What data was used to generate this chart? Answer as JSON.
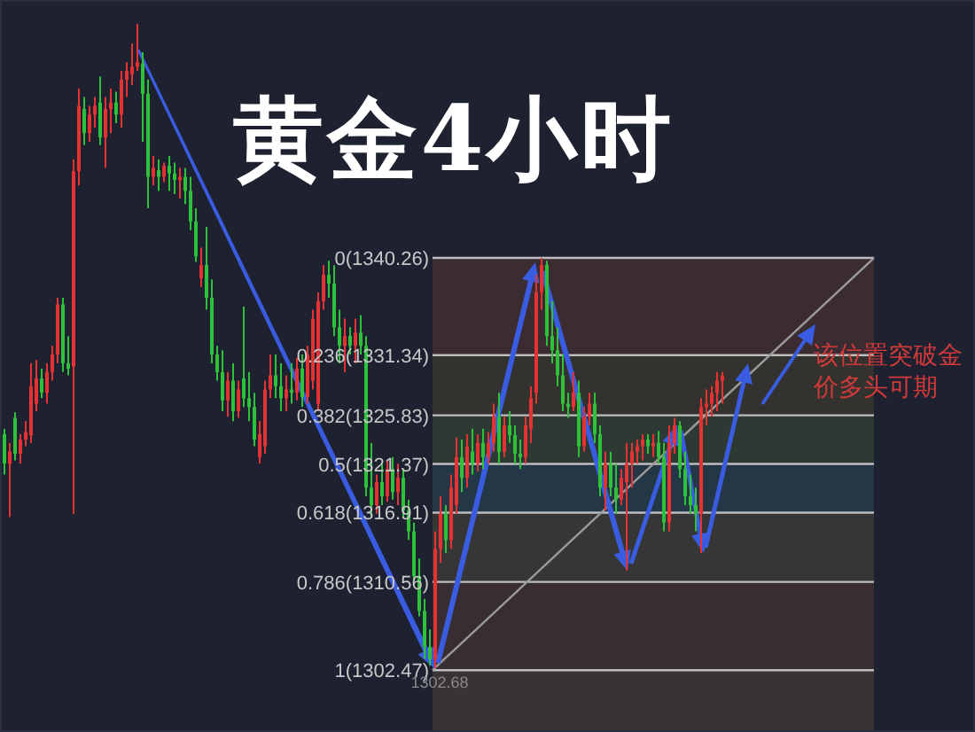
{
  "chart_data": {
    "type": "candlestick",
    "title": "黄金4小时",
    "categories": [
      null,
      null,
      null,
      null,
      null,
      null,
      null,
      null,
      null,
      null,
      null,
      null,
      null,
      null,
      null,
      null,
      null,
      null,
      null,
      null,
      null,
      null,
      null,
      null,
      null,
      null,
      null,
      null,
      null,
      null,
      null,
      null,
      null,
      null,
      null,
      null,
      null,
      null,
      null,
      null,
      null,
      null,
      null,
      null,
      null,
      null,
      null,
      null,
      null,
      null,
      null,
      null,
      null,
      null,
      null,
      null,
      null,
      null,
      null,
      null,
      null,
      null,
      null,
      null,
      null,
      null,
      null,
      null,
      null,
      null,
      null,
      null,
      null,
      null,
      null,
      null,
      null,
      null,
      null,
      null,
      null,
      null,
      null,
      null,
      null,
      null,
      null,
      null,
      null,
      null,
      null,
      null,
      null,
      null,
      null,
      null,
      null,
      null,
      null,
      null,
      null,
      null,
      null,
      null,
      null,
      null,
      null,
      null,
      null,
      null,
      null,
      null,
      null,
      null,
      null,
      null,
      null,
      null,
      null,
      null,
      null,
      null,
      null,
      null,
      null,
      null,
      null,
      null,
      null,
      null,
      null,
      null,
      null,
      null,
      null,
      null
    ],
    "ohlc": [
      [
        1324.1,
        1324.6,
        1320.4,
        1321.4
      ],
      [
        1321.4,
        1323.3,
        1316.5,
        1322.5
      ],
      [
        1325.6,
        1326.1,
        1321.7,
        1322.3
      ],
      [
        1322.3,
        1324.1,
        1321.4,
        1323.6
      ],
      [
        1323.6,
        1325.3,
        1323.0,
        1324.3
      ],
      [
        1324.0,
        1330.6,
        1323.3,
        1328.5
      ],
      [
        1326.9,
        1330.9,
        1326.2,
        1329.2
      ],
      [
        1329.2,
        1330.1,
        1327.4,
        1327.9
      ],
      [
        1327.9,
        1330.6,
        1326.9,
        1329.8
      ],
      [
        1329.8,
        1332.2,
        1329.0,
        1331.4
      ],
      [
        1331.4,
        1336.6,
        1330.6,
        1336.0
      ],
      [
        1336.0,
        1336.6,
        1329.8,
        1330.6
      ],
      [
        1330.6,
        1333.1,
        1329.5,
        1330.1
      ],
      [
        1330.3,
        1349.3,
        1316.8,
        1348.2
      ],
      [
        1348.2,
        1355.8,
        1346.9,
        1354.2
      ],
      [
        1353.9,
        1355.0,
        1350.6,
        1351.7
      ],
      [
        1351.7,
        1354.2,
        1350.9,
        1353.4
      ],
      [
        1353.4,
        1355.0,
        1352.2,
        1354.2
      ],
      [
        1354.5,
        1356.9,
        1350.6,
        1351.3
      ],
      [
        1351.3,
        1355.0,
        1348.5,
        1353.9
      ],
      [
        1353.9,
        1355.8,
        1351.7,
        1354.5
      ],
      [
        1354.5,
        1355.5,
        1352.6,
        1353.4
      ],
      [
        1353.4,
        1357.4,
        1352.2,
        1356.6
      ],
      [
        1356.6,
        1358.2,
        1355.0,
        1357.4
      ],
      [
        1357.1,
        1359.9,
        1356.1,
        1357.8
      ],
      [
        1357.8,
        1361.7,
        1357.4,
        1358.2
      ],
      [
        1358.1,
        1359.1,
        1350.9,
        1355.3
      ],
      [
        1355.3,
        1356.6,
        1344.8,
        1347.7
      ],
      [
        1347.7,
        1349.6,
        1346.9,
        1348.5
      ],
      [
        1348.3,
        1349.3,
        1346.4,
        1347.7
      ],
      [
        1347.7,
        1349.0,
        1347.2,
        1348.7
      ],
      [
        1348.7,
        1349.6,
        1346.4,
        1348.0
      ],
      [
        1348.0,
        1349.0,
        1346.1,
        1347.4
      ],
      [
        1347.4,
        1348.5,
        1345.7,
        1347.7
      ],
      [
        1347.7,
        1348.5,
        1345.2,
        1346.4
      ],
      [
        1346.4,
        1347.7,
        1342.8,
        1343.6
      ],
      [
        1343.6,
        1344.8,
        1339.9,
        1340.4
      ],
      [
        1338.4,
        1341.2,
        1337.6,
        1339.6
      ],
      [
        1339.6,
        1343.1,
        1335.5,
        1336.6
      ],
      [
        1336.6,
        1338.3,
        1330.6,
        1331.4
      ],
      [
        1331.4,
        1332.2,
        1329.0,
        1329.8
      ],
      [
        1329.8,
        1331.8,
        1326.2,
        1327.2
      ],
      [
        1327.2,
        1329.8,
        1325.7,
        1329.0
      ],
      [
        1329.0,
        1330.6,
        1325.3,
        1326.2
      ],
      [
        1326.2,
        1329.0,
        1325.6,
        1328.2
      ],
      [
        1329.2,
        1335.8,
        1326.6,
        1327.4
      ],
      [
        1327.4,
        1329.8,
        1325.3,
        1326.6
      ],
      [
        1326.6,
        1327.9,
        1323.0,
        1323.6
      ],
      [
        1322.0,
        1325.3,
        1321.4,
        1324.1
      ],
      [
        1323.0,
        1329.0,
        1322.3,
        1328.2
      ],
      [
        1328.2,
        1331.4,
        1327.4,
        1329.5
      ],
      [
        1329.5,
        1331.4,
        1327.4,
        1328.5
      ],
      [
        1328.5,
        1330.6,
        1326.2,
        1327.4
      ],
      [
        1327.4,
        1329.5,
        1326.2,
        1328.2
      ],
      [
        1328.2,
        1330.6,
        1326.9,
        1327.9
      ],
      [
        1327.9,
        1331.1,
        1327.2,
        1330.1
      ],
      [
        1330.1,
        1331.4,
        1326.6,
        1327.5
      ],
      [
        1327.5,
        1332.2,
        1326.9,
        1331.4
      ],
      [
        1329.0,
        1335.5,
        1328.2,
        1334.7
      ],
      [
        1326.9,
        1337.1,
        1326.2,
        1336.3
      ],
      [
        1336.3,
        1339.6,
        1335.5,
        1338.7
      ],
      [
        1338.7,
        1340.0,
        1336.6,
        1337.9
      ],
      [
        1337.9,
        1339.6,
        1333.1,
        1333.9
      ],
      [
        1333.9,
        1335.5,
        1330.6,
        1332.2
      ],
      [
        1332.2,
        1334.7,
        1329.8,
        1333.1
      ],
      [
        1333.1,
        1333.9,
        1331.4,
        1332.2
      ],
      [
        1332.2,
        1334.7,
        1330.6,
        1333.4
      ],
      [
        1333.4,
        1335.0,
        1331.4,
        1332.2
      ],
      [
        1332.2,
        1333.1,
        1318.4,
        1319.2
      ],
      [
        1319.2,
        1323.3,
        1316.5,
        1317.6
      ],
      [
        1317.6,
        1320.4,
        1316.8,
        1319.7
      ],
      [
        1319.7,
        1321.4,
        1317.6,
        1318.4
      ],
      [
        1318.4,
        1321.7,
        1317.9,
        1320.9
      ],
      [
        1320.9,
        1322.0,
        1318.1,
        1318.8
      ],
      [
        1318.8,
        1321.4,
        1317.6,
        1320.1
      ],
      [
        1320.1,
        1320.9,
        1316.5,
        1317.1
      ],
      [
        1317.1,
        1318.1,
        1314.4,
        1315.2
      ],
      [
        1315.2,
        1316.0,
        1310.6,
        1311.1
      ],
      [
        1311.1,
        1312.7,
        1307.4,
        1307.9
      ],
      [
        1307.9,
        1309.0,
        1303.5,
        1304.6
      ],
      [
        1304.6,
        1306.2,
        1302.9,
        1303.5
      ],
      [
        1303.5,
        1315.2,
        1302.68,
        1313.6
      ],
      [
        1313.6,
        1318.4,
        1312.3,
        1316.8
      ],
      [
        1316.8,
        1317.6,
        1313.2,
        1314.4
      ],
      [
        1314.4,
        1320.4,
        1313.6,
        1319.2
      ],
      [
        1317.6,
        1323.8,
        1316.8,
        1322.0
      ],
      [
        1322.0,
        1323.6,
        1318.8,
        1320.1
      ],
      [
        1320.1,
        1324.1,
        1319.2,
        1323.0
      ],
      [
        1322.5,
        1324.6,
        1320.4,
        1321.4
      ],
      [
        1321.4,
        1324.1,
        1320.7,
        1323.3
      ],
      [
        1323.3,
        1324.6,
        1320.9,
        1322.0
      ],
      [
        1322.0,
        1324.3,
        1321.4,
        1323.3
      ],
      [
        1323.3,
        1326.9,
        1322.5,
        1325.7
      ],
      [
        1325.7,
        1327.9,
        1321.4,
        1322.5
      ],
      [
        1322.5,
        1325.7,
        1322.0,
        1324.9
      ],
      [
        1324.9,
        1326.2,
        1323.3,
        1324.0
      ],
      [
        1324.0,
        1324.9,
        1321.4,
        1322.3
      ],
      [
        1322.3,
        1323.6,
        1320.9,
        1322.0
      ],
      [
        1322.0,
        1325.7,
        1321.4,
        1324.9
      ],
      [
        1324.6,
        1328.5,
        1323.3,
        1327.4
      ],
      [
        1327.9,
        1338.7,
        1326.9,
        1337.1
      ],
      [
        1337.1,
        1340.26,
        1335.5,
        1339.6
      ],
      [
        1339.6,
        1340.0,
        1332.2,
        1333.1
      ],
      [
        1333.1,
        1336.3,
        1330.6,
        1331.8
      ],
      [
        1331.8,
        1333.9,
        1328.5,
        1329.5
      ],
      [
        1329.5,
        1331.4,
        1326.2,
        1326.9
      ],
      [
        1326.9,
        1327.9,
        1325.6,
        1326.6
      ],
      [
        1326.6,
        1329.8,
        1326.2,
        1327.9
      ],
      [
        1327.9,
        1329.0,
        1322.0,
        1323.0
      ],
      [
        1323.0,
        1326.6,
        1322.5,
        1325.7
      ],
      [
        1325.7,
        1327.9,
        1324.9,
        1326.9
      ],
      [
        1326.9,
        1327.9,
        1323.3,
        1324.1
      ],
      [
        1324.1,
        1324.9,
        1318.4,
        1319.2
      ],
      [
        1319.2,
        1322.5,
        1317.1,
        1321.4
      ],
      [
        1321.4,
        1322.5,
        1318.4,
        1319.2
      ],
      [
        1319.2,
        1321.4,
        1316.8,
        1318.1
      ],
      [
        1318.1,
        1320.9,
        1317.6,
        1320.1
      ],
      [
        1319.7,
        1323.3,
        1311.6,
        1321.4
      ],
      [
        1321.4,
        1323.3,
        1319.2,
        1322.5
      ],
      [
        1322.5,
        1323.6,
        1321.4,
        1323.0
      ],
      [
        1323.0,
        1324.1,
        1321.7,
        1323.6
      ],
      [
        1323.6,
        1324.1,
        1322.3,
        1323.0
      ],
      [
        1323.0,
        1324.1,
        1322.0,
        1323.3
      ],
      [
        1323.3,
        1324.4,
        1321.4,
        1322.0
      ],
      [
        1322.0,
        1323.3,
        1315.2,
        1316.0
      ],
      [
        1316.0,
        1324.9,
        1315.2,
        1323.3
      ],
      [
        1323.3,
        1325.6,
        1322.3,
        1324.9
      ],
      [
        1324.9,
        1325.3,
        1320.1,
        1320.9
      ],
      [
        1320.9,
        1322.5,
        1317.6,
        1318.4
      ],
      [
        1318.4,
        1320.4,
        1316.8,
        1317.6
      ],
      [
        1317.6,
        1319.2,
        1315.2,
        1316.8
      ],
      [
        1316.8,
        1327.4,
        1313.2,
        1326.6
      ],
      [
        1326.6,
        1328.2,
        1324.9,
        1326.9
      ],
      [
        1326.9,
        1328.5,
        1325.7,
        1327.9
      ],
      [
        1327.9,
        1329.8,
        1326.2,
        1329.0
      ],
      [
        1329.0,
        1329.8,
        1326.9,
        1329.5
      ]
    ],
    "colors": [
      "#2ec23a",
      "#e63232",
      "#2ec23a",
      "#e63232",
      "#e63232",
      "#e63232",
      "#e63232",
      "#2ec23a",
      "#e63232",
      "#e63232",
      "#e63232",
      "#2ec23a",
      "#2ec23a",
      "#e63232",
      "#e63232",
      "#2ec23a",
      "#e63232",
      "#e63232",
      "#2ec23a",
      "#e63232",
      "#e63232",
      "#2ec23a",
      "#e63232",
      "#e63232",
      "#e63232",
      "#e63232",
      "#2ec23a",
      "#2ec23a",
      "#e63232",
      "#2ec23a",
      "#e63232",
      "#2ec23a",
      "#2ec23a",
      "#e63232",
      "#2ec23a",
      "#2ec23a",
      "#2ec23a",
      "#e63232",
      "#2ec23a",
      "#2ec23a",
      "#2ec23a",
      "#2ec23a",
      "#e63232",
      "#2ec23a",
      "#e63232",
      "#2ec23a",
      "#2ec23a",
      "#2ec23a",
      "#e63232",
      "#e63232",
      "#e63232",
      "#2ec23a",
      "#2ec23a",
      "#e63232",
      "#2ec23a",
      "#e63232",
      "#2ec23a",
      "#e63232",
      "#e63232",
      "#e63232",
      "#e63232",
      "#2ec23a",
      "#2ec23a",
      "#2ec23a",
      "#e63232",
      "#2ec23a",
      "#e63232",
      "#2ec23a",
      "#2ec23a",
      "#2ec23a",
      "#e63232",
      "#2ec23a",
      "#e63232",
      "#2ec23a",
      "#e63232",
      "#2ec23a",
      "#2ec23a",
      "#2ec23a",
      "#2ec23a",
      "#2ec23a",
      "#2ec23a",
      "#e63232",
      "#e63232",
      "#2ec23a",
      "#e63232",
      "#e63232",
      "#2ec23a",
      "#e63232",
      "#2ec23a",
      "#e63232",
      "#2ec23a",
      "#e63232",
      "#e63232",
      "#2ec23a",
      "#e63232",
      "#2ec23a",
      "#2ec23a",
      "#2ec23a",
      "#e63232",
      "#e63232",
      "#e63232",
      "#e63232",
      "#2ec23a",
      "#2ec23a",
      "#2ec23a",
      "#2ec23a",
      "#2ec23a",
      "#e63232",
      "#2ec23a",
      "#e63232",
      "#e63232",
      "#2ec23a",
      "#2ec23a",
      "#e63232",
      "#2ec23a",
      "#2ec23a",
      "#e63232",
      "#e63232",
      "#e63232",
      "#e63232",
      "#e63232",
      "#2ec23a",
      "#e63232",
      "#2ec23a",
      "#2ec23a",
      "#e63232",
      "#e63232",
      "#2ec23a",
      "#2ec23a",
      "#2ec23a",
      "#2ec23a",
      "#e63232",
      "#e63232",
      "#e63232",
      "#e63232",
      "#e63232"
    ],
    "ylim": [
      1296.8,
      1363.9
    ],
    "ref_lines": [
      {
        "axis": "y",
        "value": 1340.26,
        "label": "0(1340.26)",
        "color": "#bdbdbd"
      },
      {
        "axis": "y",
        "value": 1331.34,
        "label": "0.236(1331.34)",
        "color": "#bdbdbd"
      },
      {
        "axis": "y",
        "value": 1325.83,
        "label": "0.382(1325.83)",
        "color": "#bdbdbd"
      },
      {
        "axis": "y",
        "value": 1321.37,
        "label": "0.5(1321.37)",
        "color": "#bdbdbd"
      },
      {
        "axis": "y",
        "value": 1316.91,
        "label": "0.618(1316.91)",
        "color": "#bdbdbd"
      },
      {
        "axis": "y",
        "value": 1310.56,
        "label": "0.786(1310.56)",
        "color": "#bdbdbd"
      },
      {
        "axis": "y",
        "value": 1302.47,
        "label": "1(1302.47)",
        "color": "#bdbdbd"
      }
    ],
    "bands": [
      {
        "axis": "y",
        "from": 1331.34,
        "to": 1340.26,
        "color": "#3a2c31"
      },
      {
        "axis": "y",
        "from": 1325.83,
        "to": 1331.34,
        "color": "#34322f"
      },
      {
        "axis": "y",
        "from": 1321.37,
        "to": 1325.83,
        "color": "#2d3a34"
      },
      {
        "axis": "y",
        "from": 1316.91,
        "to": 1321.37,
        "color": "#243746"
      },
      {
        "axis": "y",
        "from": 1310.56,
        "to": 1316.91,
        "color": "#363636"
      },
      {
        "axis": "y",
        "from": 1302.47,
        "to": 1310.56,
        "color": "#372d32"
      },
      {
        "axis": "y",
        "from": 1296.8,
        "to": 1302.47,
        "color": "#3a3336"
      }
    ],
    "annotations": [
      "该位置突破金价多头可期",
      {
        "text": "1302.68",
        "y": 1302.68
      }
    ]
  }
}
